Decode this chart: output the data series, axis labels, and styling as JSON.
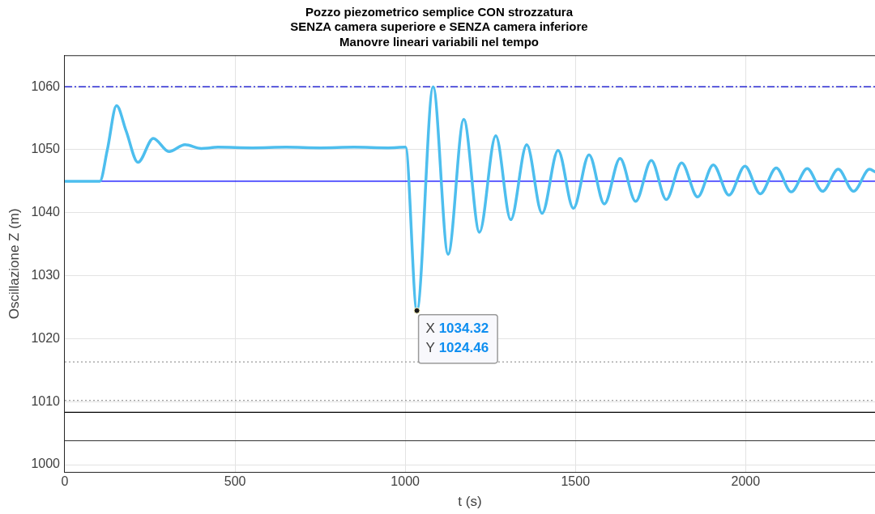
{
  "chart_data": {
    "type": "line",
    "title": "Pozzo piezometrico semplice CON strozzatura\nSENZA camera superiore e SENZA camera inferiore\nManovre lineari variabili nel tempo",
    "xlabel": "t (s)",
    "ylabel": "Oscillazione Z (m)",
    "x": [
      0,
      103,
      125,
      152,
      180,
      215,
      260,
      306,
      353,
      401,
      450,
      550,
      650,
      750,
      850,
      950,
      1001,
      1034.32,
      1082,
      1126,
      1172,
      1218,
      1266,
      1310,
      1357,
      1402,
      1449,
      1494,
      1540,
      1585,
      1631,
      1677,
      1723,
      1767,
      1812,
      1859,
      1905,
      1951,
      1998,
      2043,
      2090,
      2134,
      2181,
      2226,
      2272,
      2317,
      2364,
      2380
    ],
    "series": [
      {
        "color": "#4dbeee",
        "values": [
          1045,
          1045,
          1050,
          1057,
          1053,
          1048,
          1051.8,
          1049.7,
          1050.8,
          1050.2,
          1050.4,
          1050.3,
          1050.4,
          1050.3,
          1050.4,
          1050.3,
          1050.4,
          1024.46,
          1060,
          1033.4,
          1054.8,
          1036.9,
          1052.2,
          1038.9,
          1050.8,
          1039.9,
          1049.9,
          1040.7,
          1049.2,
          1041.4,
          1048.6,
          1041.8,
          1048.3,
          1042.1,
          1047.9,
          1042.5,
          1047.6,
          1042.8,
          1047.4,
          1043,
          1047.1,
          1043.3,
          1047,
          1043.4,
          1046.9,
          1043.4,
          1046.9,
          1046.5
        ]
      }
    ],
    "xlim": [
      0,
      2380
    ],
    "xticks": [
      0,
      500,
      1000,
      1500,
      2000
    ],
    "ylim": [
      998.8,
      1065
    ],
    "yticks": [
      1000,
      1010,
      1020,
      1030,
      1040,
      1050,
      1060
    ],
    "grid": true,
    "legend": false,
    "marker": "none",
    "line_style": "solid",
    "ref_lines": [
      {
        "axis": "y",
        "value": 1060,
        "color": "#0000cc",
        "line_style": "dashed"
      },
      {
        "axis": "y",
        "value": 1045,
        "color": "#0000ff",
        "line_style": "solid"
      },
      {
        "axis": "y",
        "value": 1016.3,
        "color": "#9a9a9a",
        "line_style": "dotted"
      },
      {
        "axis": "y",
        "value": 1010.2,
        "color": "#9a9a9a",
        "line_style": "dotted"
      },
      {
        "axis": "y",
        "value": 1008.3,
        "color": "#000000",
        "line_style": "solid"
      },
      {
        "axis": "y",
        "value": 1003.8,
        "color": "#333333",
        "line_style": "solid"
      }
    ],
    "annotations": [
      {
        "text": "X 1034.32\nY 1024.46",
        "x": 1034.32,
        "y": 1024.46
      }
    ]
  }
}
